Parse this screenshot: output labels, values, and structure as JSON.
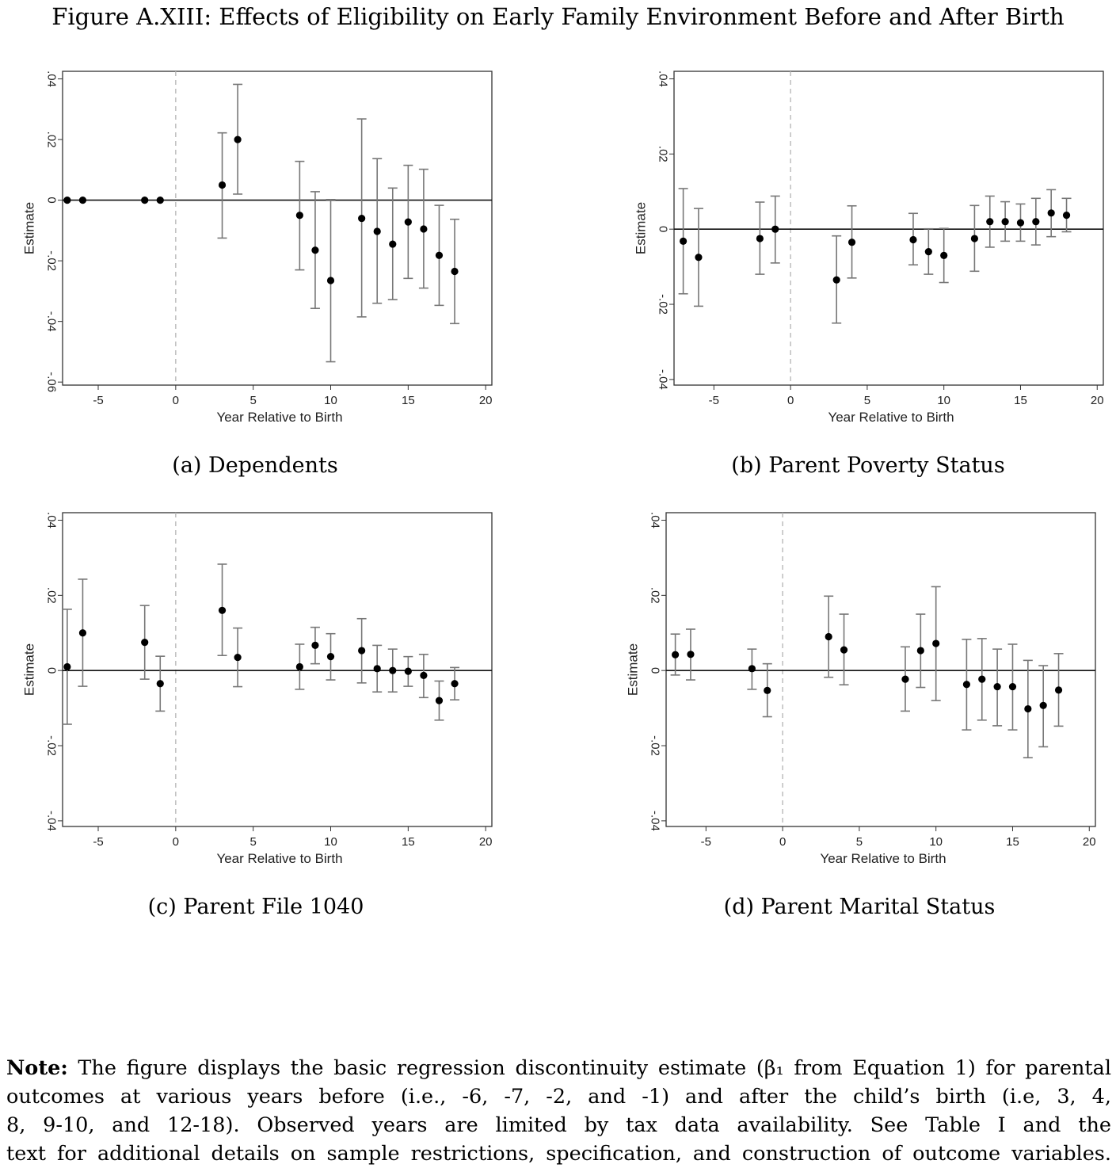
{
  "figure_title": "Figure A.XIII: Effects of Eligibility on Early Family Environment Before and After Birth",
  "note": {
    "label": "Note:",
    "lines": [
      " The figure displays the basic regression discontinuity estimate (β₁ from Equation 1) for parental",
      "outcomes at various years before (i.e., -6, -7, -2, and -1) and after the child’s birth (i.e, 3, 4,",
      "8, 9-10, and 12-18).  Observed years are limited by tax data availability.  See Table I and the",
      "text for additional details on sample restrictions, specification, and construction of outcome variables."
    ]
  },
  "chart_data": [
    {
      "type": "scatter",
      "caption": "(a) Dependents",
      "xlabel": "Year Relative to Birth",
      "ylabel": "Estimate",
      "xlim": [
        -7.3,
        20.4
      ],
      "ylim": [
        -0.061,
        0.0425
      ],
      "xticks": [
        "-5",
        "0",
        "5",
        "10",
        "15",
        "20"
      ],
      "xtick_values": [
        -5,
        0,
        5,
        10,
        15,
        20
      ],
      "yticks": [
        ".04",
        ".02",
        "0",
        "-.02",
        "-.04",
        "-.06"
      ],
      "ytick_values": [
        0.04,
        0.02,
        0,
        -0.02,
        -0.04,
        -0.06
      ],
      "series": [
        {
          "x": [
            -7,
            -6,
            -2,
            -1,
            3,
            4,
            8,
            9,
            10,
            12,
            13,
            14,
            15,
            16,
            17,
            18
          ],
          "y": [
            0,
            0,
            0,
            0,
            0.005,
            0.02,
            -0.005,
            -0.0165,
            -0.0265,
            -0.006,
            -0.0103,
            -0.0145,
            -0.0072,
            -0.0095,
            -0.0182,
            -0.0235
          ],
          "ci_low": [
            null,
            null,
            null,
            null,
            -0.0125,
            0.002,
            -0.023,
            -0.0357,
            -0.0533,
            -0.0385,
            -0.034,
            -0.0328,
            -0.0258,
            -0.029,
            -0.0347,
            -0.0407
          ],
          "ci_high": [
            null,
            null,
            null,
            null,
            0.0222,
            0.0382,
            0.0128,
            0.0028,
            0.0002,
            0.0268,
            0.0137,
            0.004,
            0.0115,
            0.0102,
            -0.0017,
            -0.0063
          ]
        }
      ]
    },
    {
      "type": "scatter",
      "caption": "(b) Parent Poverty Status",
      "xlabel": "Year Relative to Birth",
      "ylabel": "Estimate",
      "xlim": [
        -7.6,
        20.4
      ],
      "ylim": [
        -0.0415,
        0.042
      ],
      "xticks": [
        "-5",
        "0",
        "5",
        "10",
        "15",
        "20"
      ],
      "xtick_values": [
        -5,
        0,
        5,
        10,
        15,
        20
      ],
      "yticks": [
        ".04",
        ".02",
        "0",
        "-.02",
        "-.04"
      ],
      "ytick_values": [
        0.04,
        0.02,
        0,
        -0.02,
        -0.04
      ],
      "series": [
        {
          "x": [
            -7,
            -6,
            -2,
            -1,
            3,
            4,
            8,
            9,
            10,
            12,
            13,
            14,
            15,
            16,
            17,
            18
          ],
          "y": [
            -0.0032,
            -0.0075,
            -0.0025,
            0,
            -0.0135,
            -0.0035,
            -0.0028,
            -0.006,
            -0.007,
            -0.0025,
            0.002,
            0.002,
            0.0017,
            0.002,
            0.0043,
            0.0037
          ],
          "ci_low": [
            -0.0172,
            -0.0205,
            -0.012,
            -0.009,
            -0.025,
            -0.013,
            -0.0095,
            -0.012,
            -0.0142,
            -0.0112,
            -0.0048,
            -0.0032,
            -0.0032,
            -0.0042,
            -0.002,
            -0.0007
          ],
          "ci_high": [
            0.0108,
            0.0055,
            0.0072,
            0.0088,
            -0.0018,
            0.0062,
            0.0042,
            0.0001,
            0.0002,
            0.0063,
            0.0088,
            0.0073,
            0.0067,
            0.0082,
            0.0105,
            0.0082
          ]
        }
      ]
    },
    {
      "type": "scatter",
      "caption": "(c) Parent File 1040",
      "xlabel": "Year Relative to Birth",
      "ylabel": "Estimate",
      "xlim": [
        -7.3,
        20.4
      ],
      "ylim": [
        -0.0415,
        0.042
      ],
      "xticks": [
        "-5",
        "0",
        "5",
        "10",
        "15",
        "20"
      ],
      "xtick_values": [
        -5,
        0,
        5,
        10,
        15,
        20
      ],
      "yticks": [
        ".04",
        ".02",
        "0",
        "-.02",
        "-.04"
      ],
      "ytick_values": [
        0.04,
        0.02,
        0,
        -0.02,
        -0.04
      ],
      "series": [
        {
          "x": [
            -7,
            -6,
            -2,
            -1,
            3,
            4,
            8,
            9,
            10,
            12,
            13,
            14,
            15,
            16,
            17,
            18
          ],
          "y": [
            0.001,
            0.01,
            0.0075,
            -0.0035,
            0.016,
            0.0035,
            0.001,
            0.0067,
            0.0037,
            0.0053,
            0.0005,
            0,
            -0.0002,
            -0.0013,
            -0.008,
            -0.0035
          ],
          "ci_low": [
            -0.0143,
            -0.0042,
            -0.0023,
            -0.0108,
            0.004,
            -0.0043,
            -0.005,
            0.0018,
            -0.0025,
            -0.0033,
            -0.0057,
            -0.0057,
            -0.0042,
            -0.0072,
            -0.0132,
            -0.0078
          ],
          "ci_high": [
            0.0163,
            0.0243,
            0.0173,
            0.0038,
            0.0283,
            0.0113,
            0.007,
            0.0115,
            0.0098,
            0.0138,
            0.0067,
            0.0057,
            0.0037,
            0.0043,
            -0.0028,
            0.0008
          ]
        }
      ]
    },
    {
      "type": "scatter",
      "caption": "(d) Parent Marital Status",
      "xlabel": "Year Relative to Birth",
      "ylabel": "Estimate",
      "xlim": [
        -7.6,
        20.4
      ],
      "ylim": [
        -0.0415,
        0.042
      ],
      "xticks": [
        "-5",
        "0",
        "5",
        "10",
        "15",
        "20"
      ],
      "xtick_values": [
        -5,
        0,
        5,
        10,
        15,
        20
      ],
      "yticks": [
        ".04",
        ".02",
        "0",
        "-.02",
        "-.04"
      ],
      "ytick_values": [
        0.04,
        0.02,
        0,
        -0.02,
        -0.04
      ],
      "series": [
        {
          "x": [
            -7,
            -6,
            -2,
            -1,
            3,
            4,
            8,
            9,
            10,
            12,
            13,
            14,
            15,
            16,
            17,
            18
          ],
          "y": [
            0.0042,
            0.0043,
            0.0005,
            -0.0053,
            0.009,
            0.0055,
            -0.0023,
            0.0053,
            0.0072,
            -0.0037,
            -0.0023,
            -0.0043,
            -0.0043,
            -0.0102,
            -0.0093,
            -0.0052
          ],
          "ci_low": [
            -0.0012,
            -0.0025,
            -0.005,
            -0.0123,
            -0.0018,
            -0.0038,
            -0.0108,
            -0.0045,
            -0.008,
            -0.0158,
            -0.0132,
            -0.0147,
            -0.0158,
            -0.0232,
            -0.0203,
            -0.0148
          ],
          "ci_high": [
            0.0097,
            0.011,
            0.0057,
            0.0018,
            0.0198,
            0.015,
            0.0063,
            0.015,
            0.0223,
            0.0083,
            0.0085,
            0.0057,
            0.007,
            0.0027,
            0.0013,
            0.0045
          ]
        }
      ]
    }
  ]
}
